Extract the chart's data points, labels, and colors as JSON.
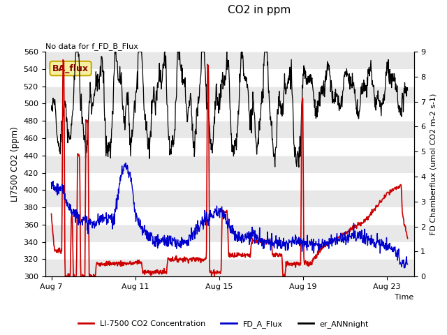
{
  "title": "CO2 in ppm",
  "top_left_text": "No data for f_FD_B_Flux",
  "ylabel_left": "LI7500 CO2 (ppm)",
  "ylabel_right": "FD Chamberflux (umol CO2 m-2 s-1)",
  "xlabel": "Time",
  "ylim_left": [
    300,
    560
  ],
  "ylim_right": [
    0.0,
    9.0
  ],
  "yticks_left": [
    300,
    320,
    340,
    360,
    380,
    400,
    420,
    440,
    460,
    480,
    500,
    520,
    540,
    560
  ],
  "yticks_right": [
    0.0,
    1.0,
    2.0,
    3.0,
    4.0,
    5.0,
    6.0,
    7.0,
    8.0,
    9.0
  ],
  "xtick_labels": [
    "Aug 7",
    "Aug 11",
    "Aug 15",
    "Aug 19",
    "Aug 23"
  ],
  "ba_flux_label": "BA_flux",
  "legend_labels": [
    "LI-7500 CO2 Concentration",
    "FD_A_Flux",
    "er_ANNnight"
  ],
  "legend_colors": [
    "#cc0000",
    "#0000cc",
    "#000000"
  ],
  "line_red_color": "#cc0000",
  "line_blue_color": "#0000cc",
  "line_black_color": "#000000",
  "background_color": "#ffffff",
  "band_color": "#e8e8e8"
}
